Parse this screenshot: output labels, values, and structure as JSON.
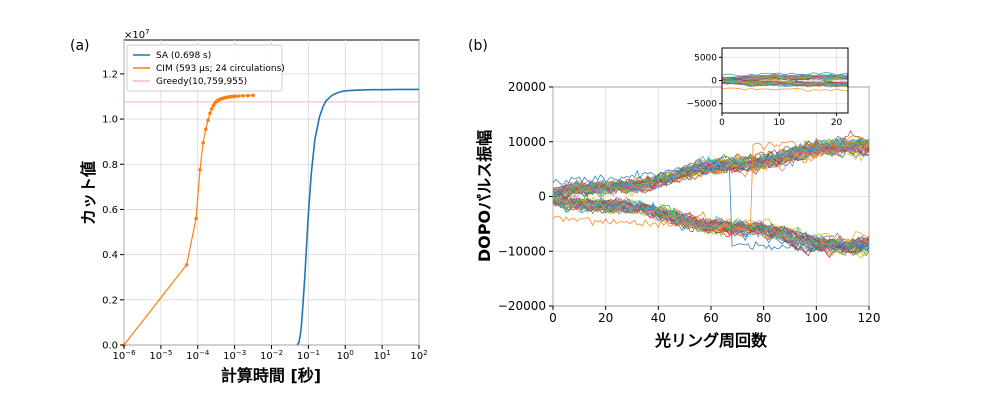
{
  "chart_data": [
    {
      "panel_label": "(a)",
      "type": "line",
      "xlabel": "計算時間 [秒]",
      "ylabel": "カット値",
      "xscale": "log",
      "xlim": [
        1e-06,
        100
      ],
      "ylim": [
        0,
        13500000
      ],
      "y_multiplier_text": "×10",
      "y_multiplier_exp": "7",
      "grid": true,
      "legend_position": "top-left",
      "x_ticks": [
        {
          "base": "10",
          "exp": "−6"
        },
        {
          "base": "10",
          "exp": "−5"
        },
        {
          "base": "10",
          "exp": "−4"
        },
        {
          "base": "10",
          "exp": "−3"
        },
        {
          "base": "10",
          "exp": "−2"
        },
        {
          "base": "10",
          "exp": "−1"
        },
        {
          "base": "10",
          "exp": "0"
        },
        {
          "base": "10",
          "exp": "1"
        },
        {
          "base": "10",
          "exp": "2"
        }
      ],
      "y_ticks": [
        "0.0",
        "0.2",
        "0.4",
        "0.6",
        "0.8",
        "1.0",
        "1.2"
      ],
      "series": [
        {
          "name": "SA (0.698 s)",
          "color": "#1f77b4",
          "x": [
            0.05,
            0.055,
            0.06,
            0.065,
            0.07,
            0.08,
            0.09,
            0.1,
            0.12,
            0.15,
            0.2,
            0.25,
            0.3,
            0.4,
            0.5,
            0.7,
            1,
            2,
            5,
            10,
            30,
            100
          ],
          "y": [
            0,
            100000,
            400000,
            900000,
            1600000,
            3000000,
            4500000,
            5800000,
            7600000,
            9100000,
            10100000,
            10550000,
            10800000,
            11000000,
            11100000,
            11200000,
            11250000,
            11280000,
            11300000,
            11300000,
            11310000,
            11310000
          ]
        },
        {
          "name": "CIM (593 μs; 24 circulations)",
          "color": "#ff7f0e",
          "x": [
            1e-06,
            5e-05,
            9e-05,
            0.000115,
            0.00014,
            0.000165,
            0.00019,
            0.000215,
            0.00024,
            0.000265,
            0.00029,
            0.00032,
            0.00035,
            0.00039,
            0.00043,
            0.00048,
            0.00053,
            0.0006,
            0.00068,
            0.00078,
            0.0009,
            0.00105,
            0.0013,
            0.0017,
            0.0023,
            0.0032
          ],
          "y": [
            0,
            3550000,
            5600000,
            7750000,
            8950000,
            9550000,
            9950000,
            10250000,
            10450000,
            10600000,
            10700000,
            10780000,
            10830000,
            10870000,
            10900000,
            10920000,
            10940000,
            10960000,
            10980000,
            10990000,
            11000000,
            11010000,
            11020000,
            11030000,
            11040000,
            11050000
          ]
        },
        {
          "name": "Greedy(10,759,955)",
          "color": "#f4b8c1",
          "y_const": 10759955
        }
      ]
    },
    {
      "panel_label": "(b)",
      "type": "line",
      "xlabel": "光リング周回数",
      "ylabel": "DOPOパルス振幅",
      "xlim": [
        0,
        120
      ],
      "ylim": [
        -20000,
        20000
      ],
      "grid": true,
      "x_ticks": [
        "0",
        "20",
        "40",
        "60",
        "80",
        "100",
        "120"
      ],
      "y_ticks": [
        "−20000",
        "−10000",
        "0",
        "10000",
        "20000"
      ],
      "trajectory_bundles": {
        "upper_end": 10000,
        "lower_end": -10000,
        "steps": 120,
        "lines_per_bundle": 40
      },
      "inset": {
        "xlim": [
          0,
          22
        ],
        "ylim": [
          -7000,
          7000
        ],
        "x_ticks": [
          "0",
          "10",
          "20"
        ],
        "y_ticks": [
          "−5000",
          "0",
          "5000"
        ]
      },
      "palette": [
        "#1f77b4",
        "#ff7f0e",
        "#2ca02c",
        "#d62728",
        "#9467bd",
        "#8c564b",
        "#e377c2",
        "#7f7f7f",
        "#bcbd22",
        "#17becf"
      ]
    }
  ]
}
